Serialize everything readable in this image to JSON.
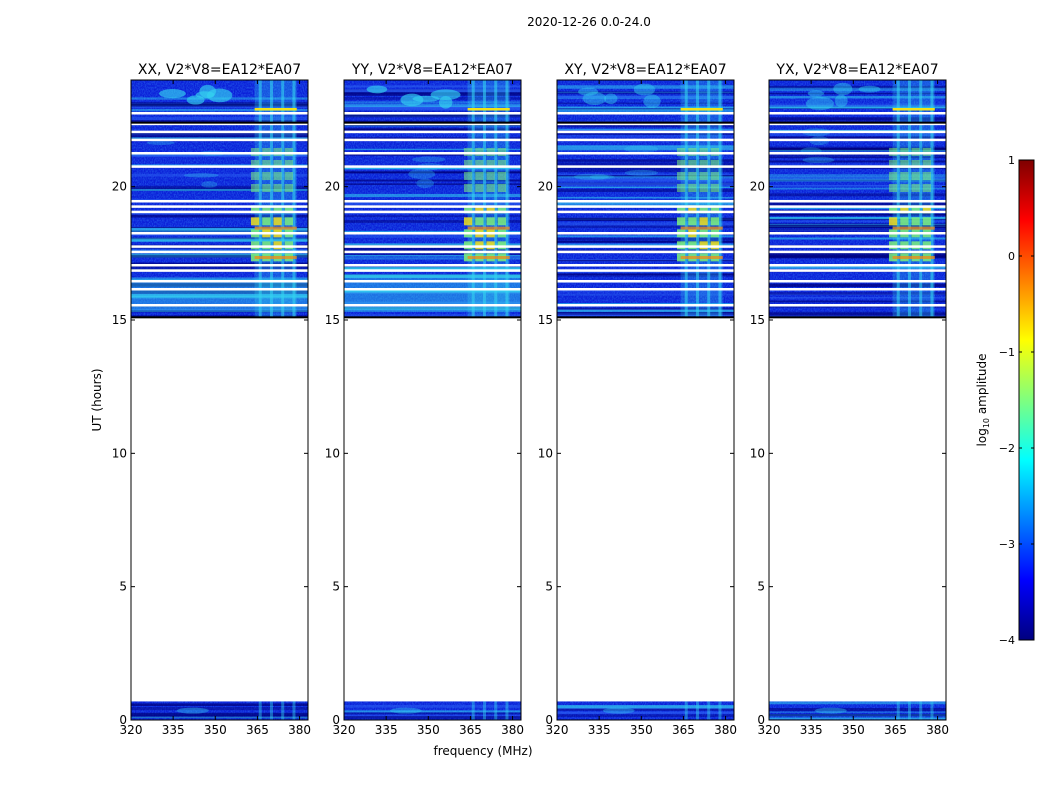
{
  "figure_title": "2020-12-26 0.0-24.0",
  "colors": {
    "background": "#ffffff",
    "axes": "#000000",
    "flag_stripe": "#ffffff",
    "dark_band": "#00007a",
    "low": "#0a1ed8",
    "mid_low": "#2a5cf0",
    "cyan": "#34d2f0",
    "green": "#7ef07a",
    "yellow": "#f0e11a",
    "orange": "#f08a16"
  },
  "colorbar": {
    "label_prefix": "log",
    "label_sub": "10",
    "label_suffix": " amplitude",
    "ticks": [
      {
        "value": 1,
        "label": "1"
      },
      {
        "value": 0,
        "label": "0"
      },
      {
        "value": -1,
        "label": "−1"
      },
      {
        "value": -2,
        "label": "−2"
      },
      {
        "value": -3,
        "label": "−3"
      },
      {
        "value": -4,
        "label": "−4"
      }
    ],
    "range": [
      -4,
      1
    ],
    "stops": [
      "#00007f",
      "#0000ff",
      "#007fff",
      "#00ffff",
      "#7fff7f",
      "#ffff00",
      "#ff7f00",
      "#ff0000",
      "#7f0000"
    ]
  },
  "chart_data": {
    "type": "heatmap",
    "xlabel": "frequency (MHz)",
    "ylabel": "UT (hours)",
    "xlim": [
      320,
      383
    ],
    "ylim": [
      0,
      24
    ],
    "xticks": [
      {
        "value": 320,
        "label": "320"
      },
      {
        "value": 335,
        "label": "335"
      },
      {
        "value": 350,
        "label": "350"
      },
      {
        "value": 365,
        "label": "365"
      },
      {
        "value": 380,
        "label": "380"
      }
    ],
    "yticks": [
      {
        "value": 0,
        "label": "0"
      },
      {
        "value": 5,
        "label": "5"
      },
      {
        "value": 10,
        "label": "10"
      },
      {
        "value": 15,
        "label": "15"
      },
      {
        "value": 20,
        "label": "20"
      }
    ],
    "data_segments_hours": [
      [
        0.0,
        0.7
      ],
      [
        15.1,
        24.0
      ]
    ],
    "empty_segment_hours": [
      0.7,
      15.1
    ],
    "flagged_rows_hours": [
      15.6,
      16.2,
      16.5,
      16.9,
      17.1,
      17.6,
      17.8,
      18.3,
      19.1,
      19.3,
      19.5,
      20.8,
      21.3,
      21.8,
      22.1,
      22.4,
      22.8
    ],
    "rfi_band_mhz": [
      364,
      379
    ],
    "rfi_channels_mhz": [
      366,
      370,
      374,
      378
    ],
    "panels": [
      {
        "title": "XX, V2*V8=EA12*EA07",
        "pol": "XX"
      },
      {
        "title": "YY, V2*V8=EA12*EA07",
        "pol": "YY"
      },
      {
        "title": "XY, V2*V8=EA12*EA07",
        "pol": "XY"
      },
      {
        "title": "YX, V2*V8=EA12*EA07",
        "pol": "YX"
      }
    ]
  }
}
